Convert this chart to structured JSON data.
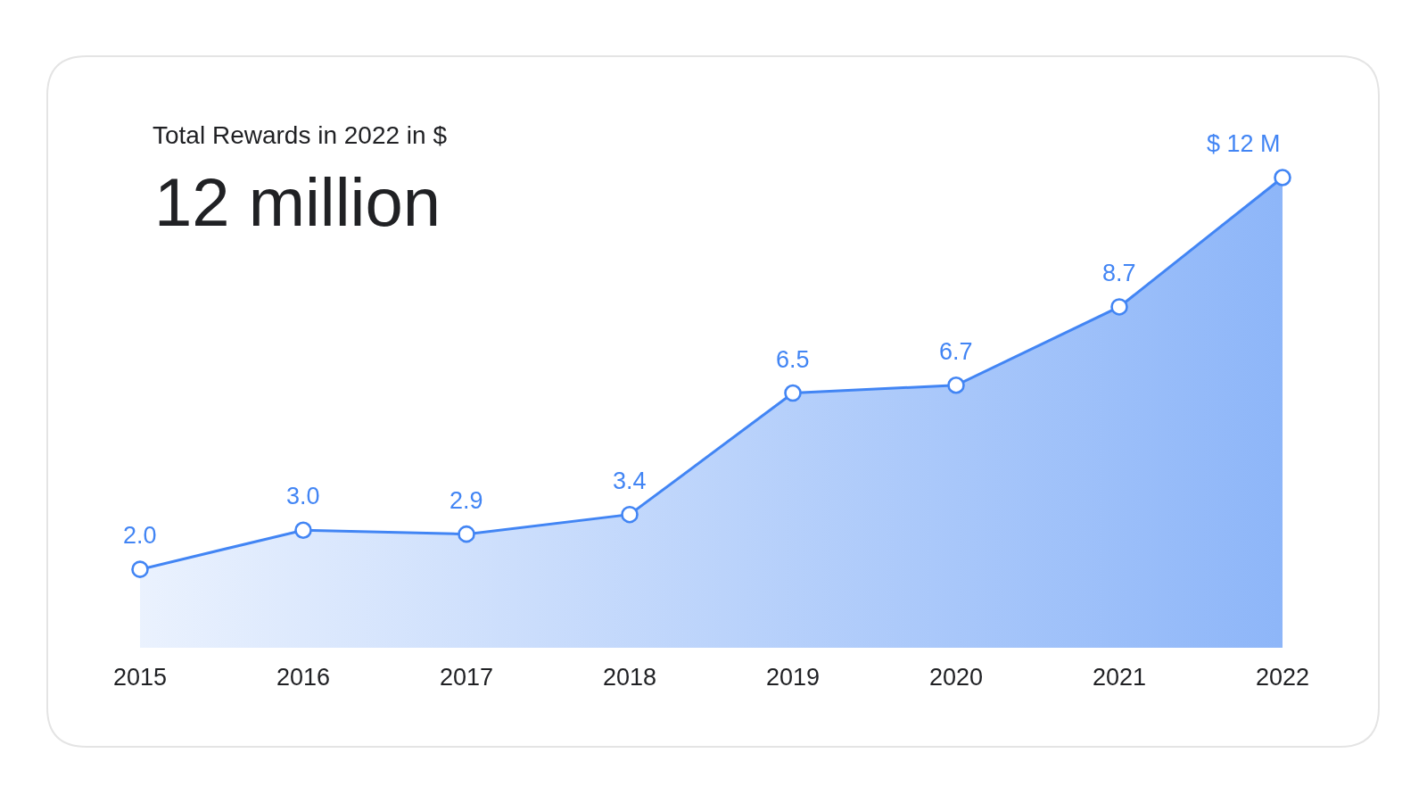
{
  "chart_data": {
    "type": "area",
    "title": "Total Rewards in 2022 in $",
    "subtitle": "12 million",
    "categories": [
      "2015",
      "2016",
      "2017",
      "2018",
      "2019",
      "2020",
      "2021",
      "2022"
    ],
    "series": [
      {
        "color": "#4285f4",
        "values": [
          2.0,
          3.0,
          2.9,
          3.4,
          6.5,
          6.7,
          8.7,
          12
        ],
        "value_labels": [
          "2.0",
          "3.0",
          "2.9",
          "3.4",
          "6.5",
          "6.7",
          "8.7",
          "$ 12 M"
        ]
      }
    ],
    "tick_labels": "x",
    "marker": "circle",
    "line_style": "solid"
  }
}
